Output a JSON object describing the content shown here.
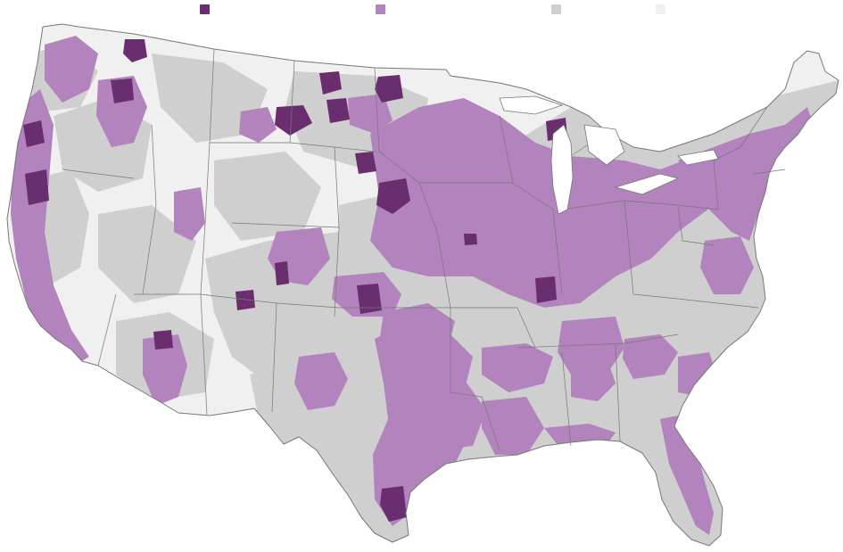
{
  "legend": {
    "items": [
      {
        "key": "dark-purple",
        "label": "",
        "color": "#6a2d6e"
      },
      {
        "key": "light-purple",
        "label": "",
        "color": "#b283bd"
      },
      {
        "key": "gray",
        "label": "",
        "color": "#cfcfcf"
      },
      {
        "key": "light-gray",
        "label": "",
        "color": "#f0f0f0"
      }
    ]
  },
  "map": {
    "base_color": "#f0f0f0",
    "border_color": "#777777",
    "colors": {
      "dark_purple": "#6a2d6e",
      "light_purple": "#b283bd",
      "gray": "#cfcfcf",
      "light_gray": "#f0f0f0"
    }
  }
}
